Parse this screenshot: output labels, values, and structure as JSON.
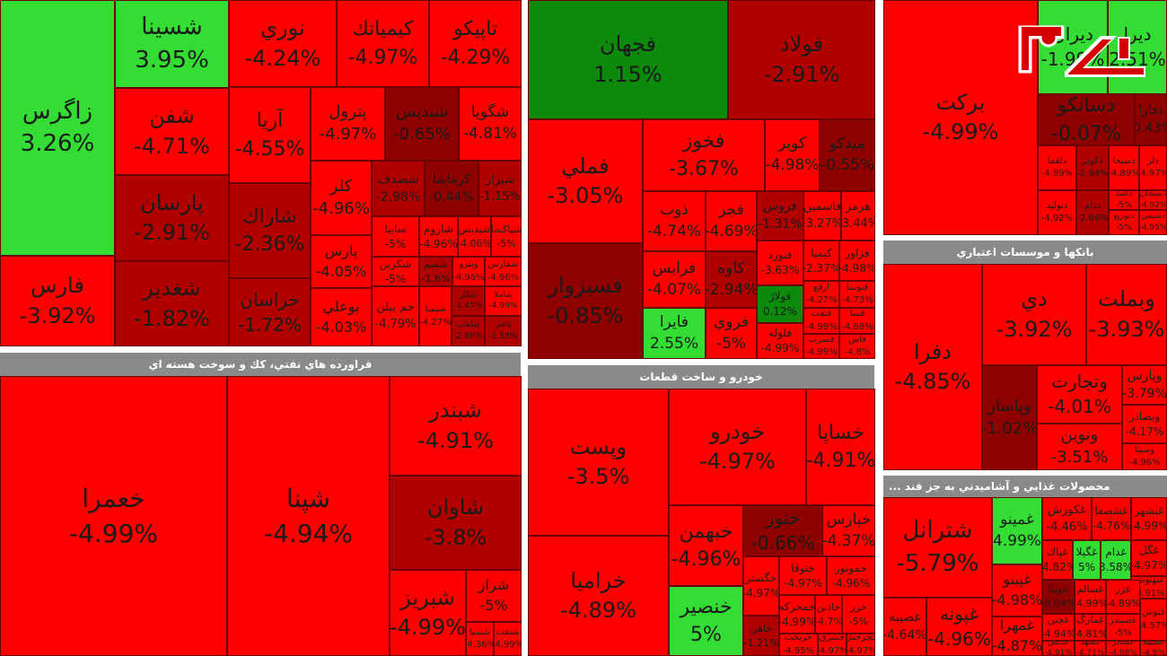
{
  "colors": {
    "red": "#ff0000",
    "darkred": "#b00000",
    "darkerred": "#8f0000",
    "green": "#33dd33",
    "darkgreen": "#0b8a0b",
    "header": "#8a8a8a"
  },
  "logo": {
    "icon": "rokna-logo"
  },
  "sectors": [
    {
      "title": "فراورده هاي نفتي، كك و سوخت هسته اي"
    },
    {
      "title": "خودرو و ساخت قطعات"
    },
    {
      "title": "بانكها و موسسات اعتباري"
    },
    {
      "title": "... محصولات غذايي و آشاميدني به جز قند"
    }
  ],
  "tiles": [
    {
      "name": "زاگرس",
      "pct": "3.26%",
      "c": "green"
    },
    {
      "name": "شسينا",
      "pct": "3.95%",
      "c": "green"
    },
    {
      "name": "فارس",
      "pct": "-3.92%",
      "c": "red"
    },
    {
      "name": "شفن",
      "pct": "-4.71%",
      "c": "red"
    },
    {
      "name": "پارسان",
      "pct": "-2.91%",
      "c": "darkred"
    },
    {
      "name": "شغدير",
      "pct": "-1.82%",
      "c": "darkred"
    },
    {
      "name": "نوري",
      "pct": "-4.24%",
      "c": "red"
    },
    {
      "name": "كيمياتك",
      "pct": "-4.97%",
      "c": "red"
    },
    {
      "name": "تاپيكو",
      "pct": "-4.29%",
      "c": "red"
    },
    {
      "name": "آريا",
      "pct": "-4.55%",
      "c": "red"
    },
    {
      "name": "شاراك",
      "pct": "-2.36%",
      "c": "darkred"
    },
    {
      "name": "خراسان",
      "pct": "-1.72%",
      "c": "darkred"
    },
    {
      "name": "پترول",
      "pct": "-4.97%",
      "c": "red"
    },
    {
      "name": "شبديس",
      "pct": "-0.65%",
      "c": "darkerred"
    },
    {
      "name": "شگويا",
      "pct": "-4.81%",
      "c": "red"
    },
    {
      "name": "كلر",
      "pct": "-4.96%",
      "c": "red"
    },
    {
      "name": "شصدف",
      "pct": "-2.98%",
      "c": "darkred"
    },
    {
      "name": "كرماشا",
      "pct": "-0.44%",
      "c": "darkerred"
    },
    {
      "name": "شيراز",
      "pct": "-1.15%",
      "c": "darkred"
    },
    {
      "name": "پارس",
      "pct": "-4.05%",
      "c": "red"
    },
    {
      "name": "سابيا",
      "pct": "-5%",
      "c": "red"
    },
    {
      "name": "شاروم",
      "pct": "-4.96%",
      "c": "red"
    },
    {
      "name": "شپديس",
      "pct": "-4.06%",
      "c": "red"
    },
    {
      "name": "شپاكسا",
      "pct": "-5%",
      "c": "red"
    },
    {
      "name": "شكربن",
      "pct": "-5%",
      "c": "red"
    },
    {
      "name": "شسم",
      "pct": "-1.6%",
      "c": "darkred"
    },
    {
      "name": "ويترو",
      "pct": "-4.96%",
      "c": "red"
    },
    {
      "name": "شفارس",
      "pct": "-4.96%",
      "c": "red"
    },
    {
      "name": "بوعلي",
      "pct": "-4.03%",
      "c": "red"
    },
    {
      "name": "حم بيلن",
      "pct": "-4.79%",
      "c": "red"
    },
    {
      "name": "شيمبا",
      "pct": "-4.27%",
      "c": "red"
    },
    {
      "name": "شكلر",
      "pct": "-1.45%",
      "c": "darkred"
    },
    {
      "name": "شاملا",
      "pct": "-4.99%",
      "c": "red"
    },
    {
      "name": "شلعاب",
      "pct": "-2.68%",
      "c": "darkred"
    },
    {
      "name": "باختر",
      "pct": "-1.58%",
      "c": "darkred"
    },
    {
      "name": "فجهان",
      "pct": "1.15%",
      "c": "darkgreen"
    },
    {
      "name": "فولاد",
      "pct": "-2.91%",
      "c": "darkred"
    },
    {
      "name": "فملي",
      "pct": "-3.05%",
      "c": "red"
    },
    {
      "name": "فخوز",
      "pct": "-3.67%",
      "c": "red"
    },
    {
      "name": "كوير",
      "pct": "-4.98%",
      "c": "red"
    },
    {
      "name": "ميدكو",
      "pct": "-0.55%",
      "c": "darkerred"
    },
    {
      "name": "فسبزوار",
      "pct": "-0.85%",
      "c": "darkerred"
    },
    {
      "name": "ذوب",
      "pct": "-4.74%",
      "c": "red"
    },
    {
      "name": "فجر",
      "pct": "-4.69%",
      "c": "red"
    },
    {
      "name": "فروس",
      "pct": "-1.31%",
      "c": "darkred"
    },
    {
      "name": "فاسمين",
      "pct": "-3.27%",
      "c": "red"
    },
    {
      "name": "هرمز",
      "pct": "-3.44%",
      "c": "red"
    },
    {
      "name": "فرايس",
      "pct": "-4.07%",
      "c": "red"
    },
    {
      "name": "كاوه",
      "pct": "-2.94%",
      "c": "darkred"
    },
    {
      "name": "فنورد",
      "pct": "-3.63%",
      "c": "red"
    },
    {
      "name": "كيميا",
      "pct": "-2.37%",
      "c": "red"
    },
    {
      "name": "فزاور",
      "pct": "-4.98%",
      "c": "red"
    },
    {
      "name": "فولاژ",
      "pct": "0.12%",
      "c": "darkgreen"
    },
    {
      "name": "فايرا",
      "pct": "2.55%",
      "c": "green"
    },
    {
      "name": "فروي",
      "pct": "-5%",
      "c": "red"
    },
    {
      "name": "ارفع",
      "pct": "-4.27%",
      "c": "red"
    },
    {
      "name": "فنوسا",
      "pct": "-4.73%",
      "c": "red"
    },
    {
      "name": "فلوله",
      "pct": "-4.99%",
      "c": "red"
    },
    {
      "name": "فنفت",
      "pct": "-4.99%",
      "c": "red"
    },
    {
      "name": "فسا",
      "pct": "-4.88%",
      "c": "red"
    },
    {
      "name": "فسرب",
      "pct": "-4.99%",
      "c": "red"
    },
    {
      "name": "فاس",
      "pct": "-4.8%",
      "c": "red"
    },
    {
      "name": "ديران",
      "pct": "-1.99%",
      "c": "green"
    },
    {
      "name": "ديرا",
      "pct": "2.51%",
      "c": "green"
    },
    {
      "name": "بركت",
      "pct": "-4.99%",
      "c": "red"
    },
    {
      "name": "دسانكو",
      "pct": "-0.07%",
      "c": "darkerred"
    },
    {
      "name": "دفارا",
      "pct": "-0.43%",
      "c": "darkerred"
    },
    {
      "name": "دلقما",
      "pct": "-4.99%",
      "c": "red"
    },
    {
      "name": "دكوثر",
      "pct": "-2.94%",
      "c": "darkred"
    },
    {
      "name": "دسبحا",
      "pct": "-4.89%",
      "c": "red"
    },
    {
      "name": "دلر",
      "pct": "-4.97%",
      "c": "red"
    },
    {
      "name": "دعبيد",
      "pct": "-5%",
      "c": "red"
    },
    {
      "name": "دسبحان",
      "pct": "-4.92%",
      "c": "red"
    },
    {
      "name": "دتوليد",
      "pct": "-4.92%",
      "c": "red"
    },
    {
      "name": "ددام",
      "pct": "-2.66%",
      "c": "darkred"
    },
    {
      "name": "دتوزيع",
      "pct": "-5%",
      "c": "red"
    },
    {
      "name": "دشيمي",
      "pct": "-4.95%",
      "c": "red"
    },
    {
      "name": "دفرا",
      "pct": "-4.85%",
      "c": "red"
    },
    {
      "name": "دي",
      "pct": "-3.92%",
      "c": "red"
    },
    {
      "name": "وبملت",
      "pct": "-3.93%",
      "c": "red"
    },
    {
      "name": "وپاسار",
      "pct": "-1.02%",
      "c": "darkerred"
    },
    {
      "name": "وتجارت",
      "pct": "-4.01%",
      "c": "red"
    },
    {
      "name": "وپارس",
      "pct": "-3.79%",
      "c": "red"
    },
    {
      "name": "ونوين",
      "pct": "-3.51%",
      "c": "red"
    },
    {
      "name": "وبصادر",
      "pct": "-4.17%",
      "c": "red"
    },
    {
      "name": "وسينا",
      "pct": "-4.96%",
      "c": "red"
    },
    {
      "name": "وپست",
      "pct": "-3.5%",
      "c": "red"
    },
    {
      "name": "خودرو",
      "pct": "-4.97%",
      "c": "red"
    },
    {
      "name": "خساپا",
      "pct": "-4.91%",
      "c": "red"
    },
    {
      "name": "خبهمن",
      "pct": "-4.96%",
      "c": "red"
    },
    {
      "name": "ختور",
      "pct": "-0.66%",
      "c": "darkerred"
    },
    {
      "name": "خپارس",
      "pct": "-4.37%",
      "c": "red"
    },
    {
      "name": "خراميا",
      "pct": "-4.89%",
      "c": "red"
    },
    {
      "name": "خنصير",
      "pct": "5%",
      "c": "green"
    },
    {
      "name": "خگستر",
      "pct": "-4.97%",
      "c": "red"
    },
    {
      "name": "ختوقا",
      "pct": "-4.97%",
      "c": "red"
    },
    {
      "name": "خمونور",
      "pct": "-4.96%",
      "c": "red"
    },
    {
      "name": "خمحركه",
      "pct": "-4.99%",
      "c": "red"
    },
    {
      "name": "خاذين",
      "pct": "-4.7%",
      "c": "red"
    },
    {
      "name": "خزر",
      "pct": "-5%",
      "c": "red"
    },
    {
      "name": "خاهن",
      "pct": "-1.21%",
      "c": "darkred"
    },
    {
      "name": "خريخت",
      "pct": "-4.95%",
      "c": "red"
    },
    {
      "name": "خشرق",
      "pct": "-4.97%",
      "c": "red"
    },
    {
      "name": "خچرخش",
      "pct": "-4.97%",
      "c": "red"
    },
    {
      "name": "خعمرا",
      "pct": "-4.99%",
      "c": "red"
    },
    {
      "name": "شپنا",
      "pct": "-4.94%",
      "c": "red"
    },
    {
      "name": "شبندر",
      "pct": "-4.91%",
      "c": "red"
    },
    {
      "name": "شاوان",
      "pct": "-3.8%",
      "c": "darkred"
    },
    {
      "name": "شبريز",
      "pct": "-4.99%",
      "c": "red"
    },
    {
      "name": "شراز",
      "pct": "-5%",
      "c": "red"
    },
    {
      "name": "شسپا",
      "pct": "-4.36%",
      "c": "red"
    },
    {
      "name": "شنفت",
      "pct": "-4.99%",
      "c": "red"
    },
    {
      "name": "شترانل",
      "pct": "-5.79%",
      "c": "red"
    },
    {
      "name": "غمينو",
      "pct": "4.99%",
      "c": "green"
    },
    {
      "name": "غكورش",
      "pct": "-4.46%",
      "c": "red"
    },
    {
      "name": "غشصفا",
      "pct": "-4.76%",
      "c": "red"
    },
    {
      "name": "غبشهر",
      "pct": "-4.99%",
      "c": "red"
    },
    {
      "name": "غگل",
      "pct": "-4.97%",
      "c": "red"
    },
    {
      "name": "غپاك",
      "pct": "-4.82%",
      "c": "red"
    },
    {
      "name": "غگيلا",
      "pct": "5%",
      "c": "green"
    },
    {
      "name": "غدام",
      "pct": "3.58%",
      "c": "green"
    },
    {
      "name": "غبهنوش",
      "pct": "-4.91%",
      "c": "red"
    },
    {
      "name": "غپينو",
      "pct": "-4.98%",
      "c": "red"
    },
    {
      "name": "غويتا",
      "pct": "-0.04%",
      "c": "darkerred"
    },
    {
      "name": "غسالم",
      "pct": "-4.99%",
      "c": "red"
    },
    {
      "name": "غزر",
      "pct": "-4.89%",
      "c": "red"
    },
    {
      "name": "غمارگ",
      "pct": "-4.81%",
      "c": "red"
    },
    {
      "name": "غچين",
      "pct": "-4.94%",
      "c": "red"
    },
    {
      "name": "غصيندر",
      "pct": "-5%",
      "c": "red"
    },
    {
      "name": "غنوش",
      "pct": "-4.57%",
      "c": "red"
    },
    {
      "name": "غپونه",
      "pct": "-4.96%",
      "c": "red"
    },
    {
      "name": "غمهرا",
      "pct": "-4.87%",
      "c": "red"
    },
    {
      "name": "غصيبه",
      "pct": "-4.64%",
      "c": "red"
    },
    {
      "name": "غدبس",
      "pct": "-4.91%",
      "c": "red"
    },
    {
      "name": "غشهد",
      "pct": "-4.71%",
      "c": "red"
    },
    {
      "name": "غشاذر",
      "pct": "-4.98%",
      "c": "red"
    },
    {
      "name": "غسپينا",
      "pct": "-4.8%",
      "c": "red"
    },
    {
      "name": "غمهاب",
      "pct": "-4.92%",
      "c": "red"
    },
    {
      "name": "غاذر",
      "pct": "-4.99%",
      "c": "red"
    },
    {
      "name": "غدشت",
      "pct": "-4.84%",
      "c": "red"
    }
  ]
}
